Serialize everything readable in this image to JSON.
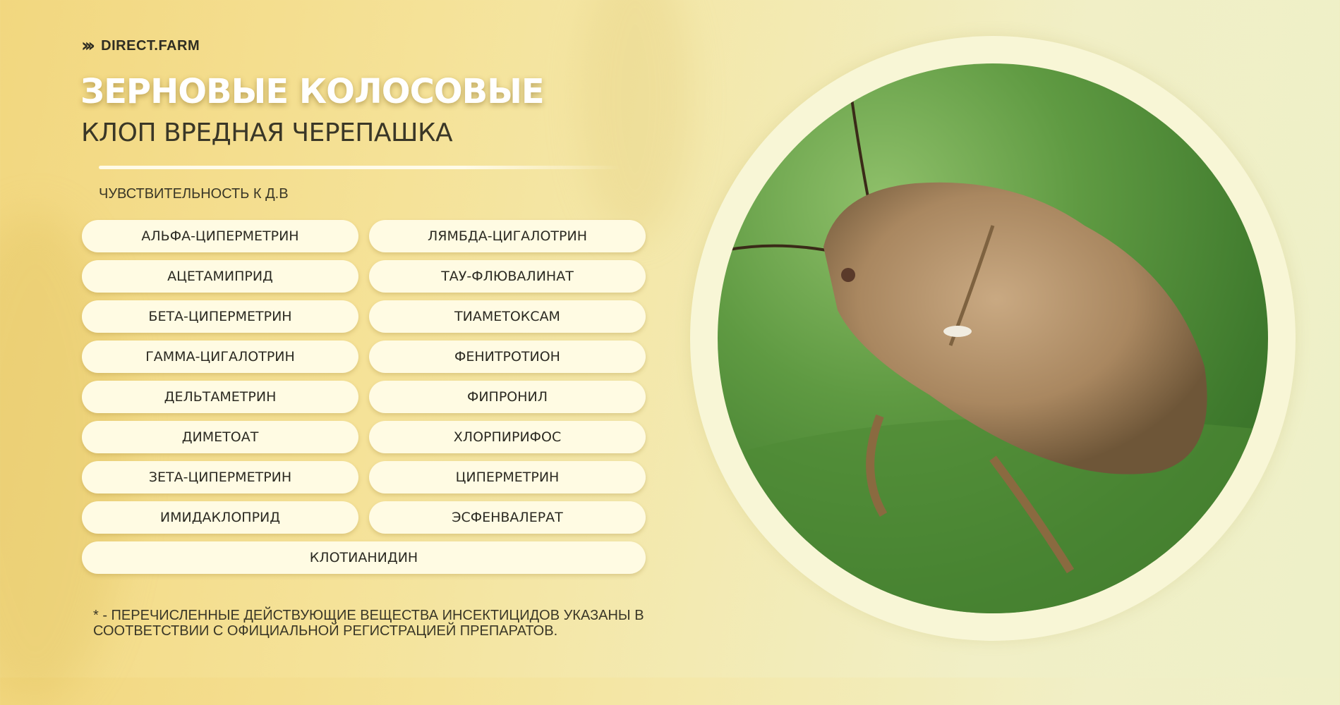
{
  "brand": {
    "name": "DIRECT.FARM",
    "icon": "chevrons-right-icon"
  },
  "header": {
    "title": "ЗЕРНОВЫЕ КОЛОСОВЫЕ",
    "subtitle": "КЛОП ВРЕДНАЯ ЧЕРЕПАШКА"
  },
  "section_label": "ЧУВСТВИТЕЛЬНОСТЬ К Д.В",
  "substances": [
    "АЛЬФА-ЦИПЕРМЕТРИН",
    "ЛЯМБДА-ЦИГАЛОТРИН",
    "АЦЕТАМИПРИД",
    "ТАУ-ФЛЮВАЛИНАТ",
    "БЕТА-ЦИПЕРМЕТРИН",
    "ТИАМЕТОКСАМ",
    "ГАММА-ЦИГАЛОТРИН",
    "ФЕНИТРОТИОН",
    "ДЕЛЬТАМЕТРИН",
    "ФИПРОНИЛ",
    "ДИМЕТОАТ",
    "ХЛОРПИРИФОС",
    "ЗЕТА-ЦИПЕРМЕТРИН",
    "ЦИПЕРМЕТРИН",
    "ИМИДАКЛОПРИД",
    "ЭСФЕНВАЛЕРАТ",
    "КЛОТИАНИДИН"
  ],
  "footnote": {
    "line1": "* - ПЕРЕЧИСЛЕННЫЕ ДЕЙСТВУЮЩИЕ ВЕЩЕСТВА ИНСЕКТИЦИДОВ УКАЗАНЫ В",
    "line2": "СООТВЕТСТВИИ С ОФИЦИАЛЬНОЙ РЕГИСТРАЦИЕЙ ПРЕПАРАТОВ."
  },
  "colors": {
    "background": "#f3dc8a",
    "pill": "#fffbe3",
    "ring": "#f8f6d6",
    "text": "#3a3727"
  }
}
